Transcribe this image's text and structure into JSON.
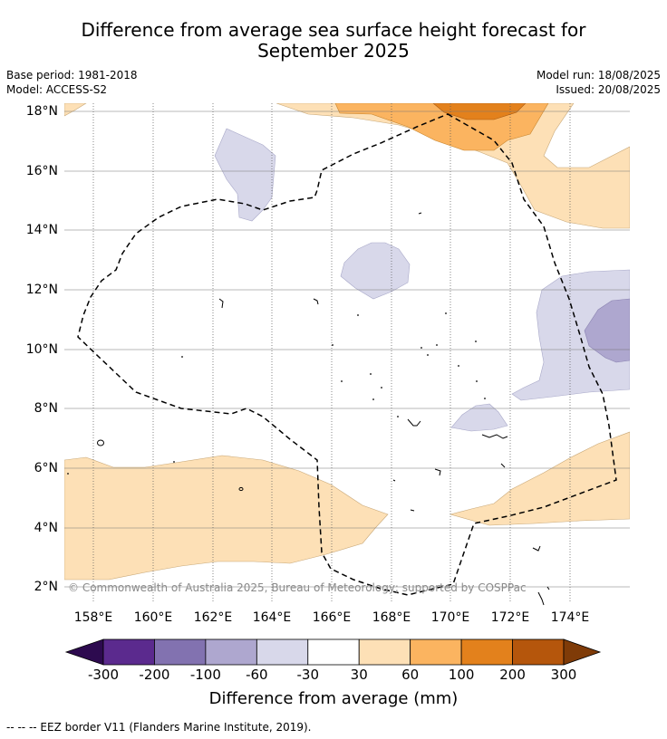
{
  "title_line1": "Difference from average sea surface height forecast for",
  "title_line2": "September 2025",
  "base_period": "Base period: 1981-2018",
  "model": "Model: ACCESS-S2",
  "model_run": "Model run: 18/08/2025",
  "issued": "Issued: 20/08/2025",
  "copyright": "© Commonwealth of Australia 2025, Bureau of Meteorology; supported by COSPPac",
  "lat_ticks": [
    "18°N",
    "16°N",
    "14°N",
    "12°N",
    "10°N",
    "8°N",
    "6°N",
    "4°N",
    "2°N"
  ],
  "lon_ticks": [
    "158°E",
    "160°E",
    "162°E",
    "164°E",
    "166°E",
    "168°E",
    "170°E",
    "172°E",
    "174°E"
  ],
  "colorbar": {
    "label": "Difference from average (mm)",
    "ticks": [
      "-300",
      "-200",
      "-100",
      "-60",
      "-30",
      "30",
      "60",
      "100",
      "200",
      "300"
    ],
    "colors": [
      "#2d0a4f",
      "#5b2a8e",
      "#8272b0",
      "#aea7cf",
      "#d8d8ea",
      "#ffffff",
      "#fde0b6",
      "#fbb460",
      "#e3811c",
      "#b5560c",
      "#7f3b08"
    ]
  },
  "footnote": "-- -- -- EEZ border V11 (Flanders Marine Institute, 2019)."
}
